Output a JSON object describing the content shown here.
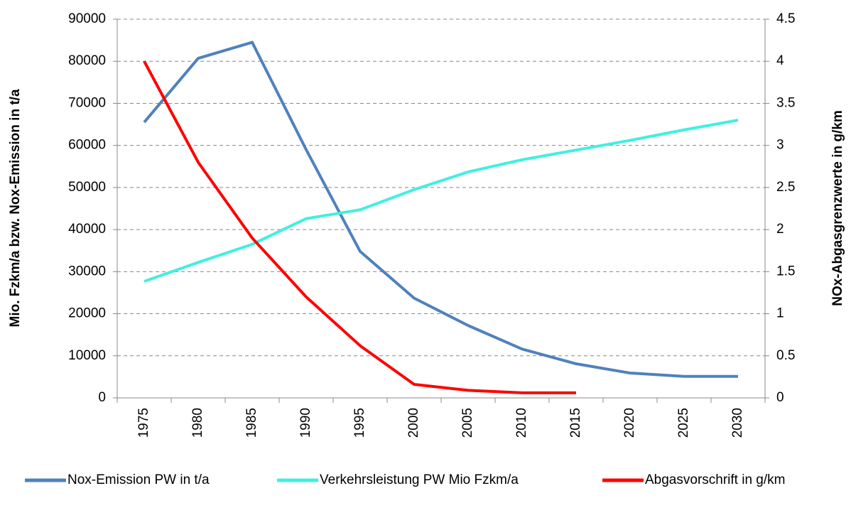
{
  "chart_data": {
    "type": "line",
    "categories": [
      "1975",
      "1980",
      "1985",
      "1990",
      "1995",
      "2000",
      "2005",
      "2010",
      "2015",
      "2020",
      "2025",
      "2030"
    ],
    "ylabel": "Mio. Fzkm/a bzw. Nox-Emission in t/a",
    "y2label": "NOx-Abgasgrenzwerte in g/km",
    "ylim": [
      0,
      90000
    ],
    "yticks": [
      0,
      10000,
      20000,
      30000,
      40000,
      50000,
      60000,
      70000,
      80000,
      90000
    ],
    "y2lim": [
      0,
      4.5
    ],
    "y2ticks": [
      0,
      0.5,
      1,
      1.5,
      2,
      2.5,
      3,
      3.5,
      4,
      4.5
    ],
    "grid": true,
    "legend": "bottom",
    "series": [
      {
        "name": "Nox-Emission PW in t/a",
        "color": "#4f81bd",
        "values": [
          65500,
          80700,
          84500,
          59000,
          34800,
          23700,
          17200,
          11600,
          8100,
          5900,
          5100,
          5100
        ]
      },
      {
        "name": "Verkehrsleistung PW Mio Fzkm/a",
        "color": "#40f0e0",
        "values": [
          27700,
          32200,
          36500,
          42600,
          44700,
          49500,
          53700,
          56600,
          58900,
          61200,
          63700,
          66000
        ]
      },
      {
        "name": "Abgasvorschrift in g/km",
        "color": "#ff0000",
        "axis": "y2",
        "values": [
          4,
          2.8,
          1.9,
          1.2,
          0.62,
          0.16,
          0.09,
          0.06,
          0.06,
          null,
          null,
          null
        ]
      }
    ]
  }
}
